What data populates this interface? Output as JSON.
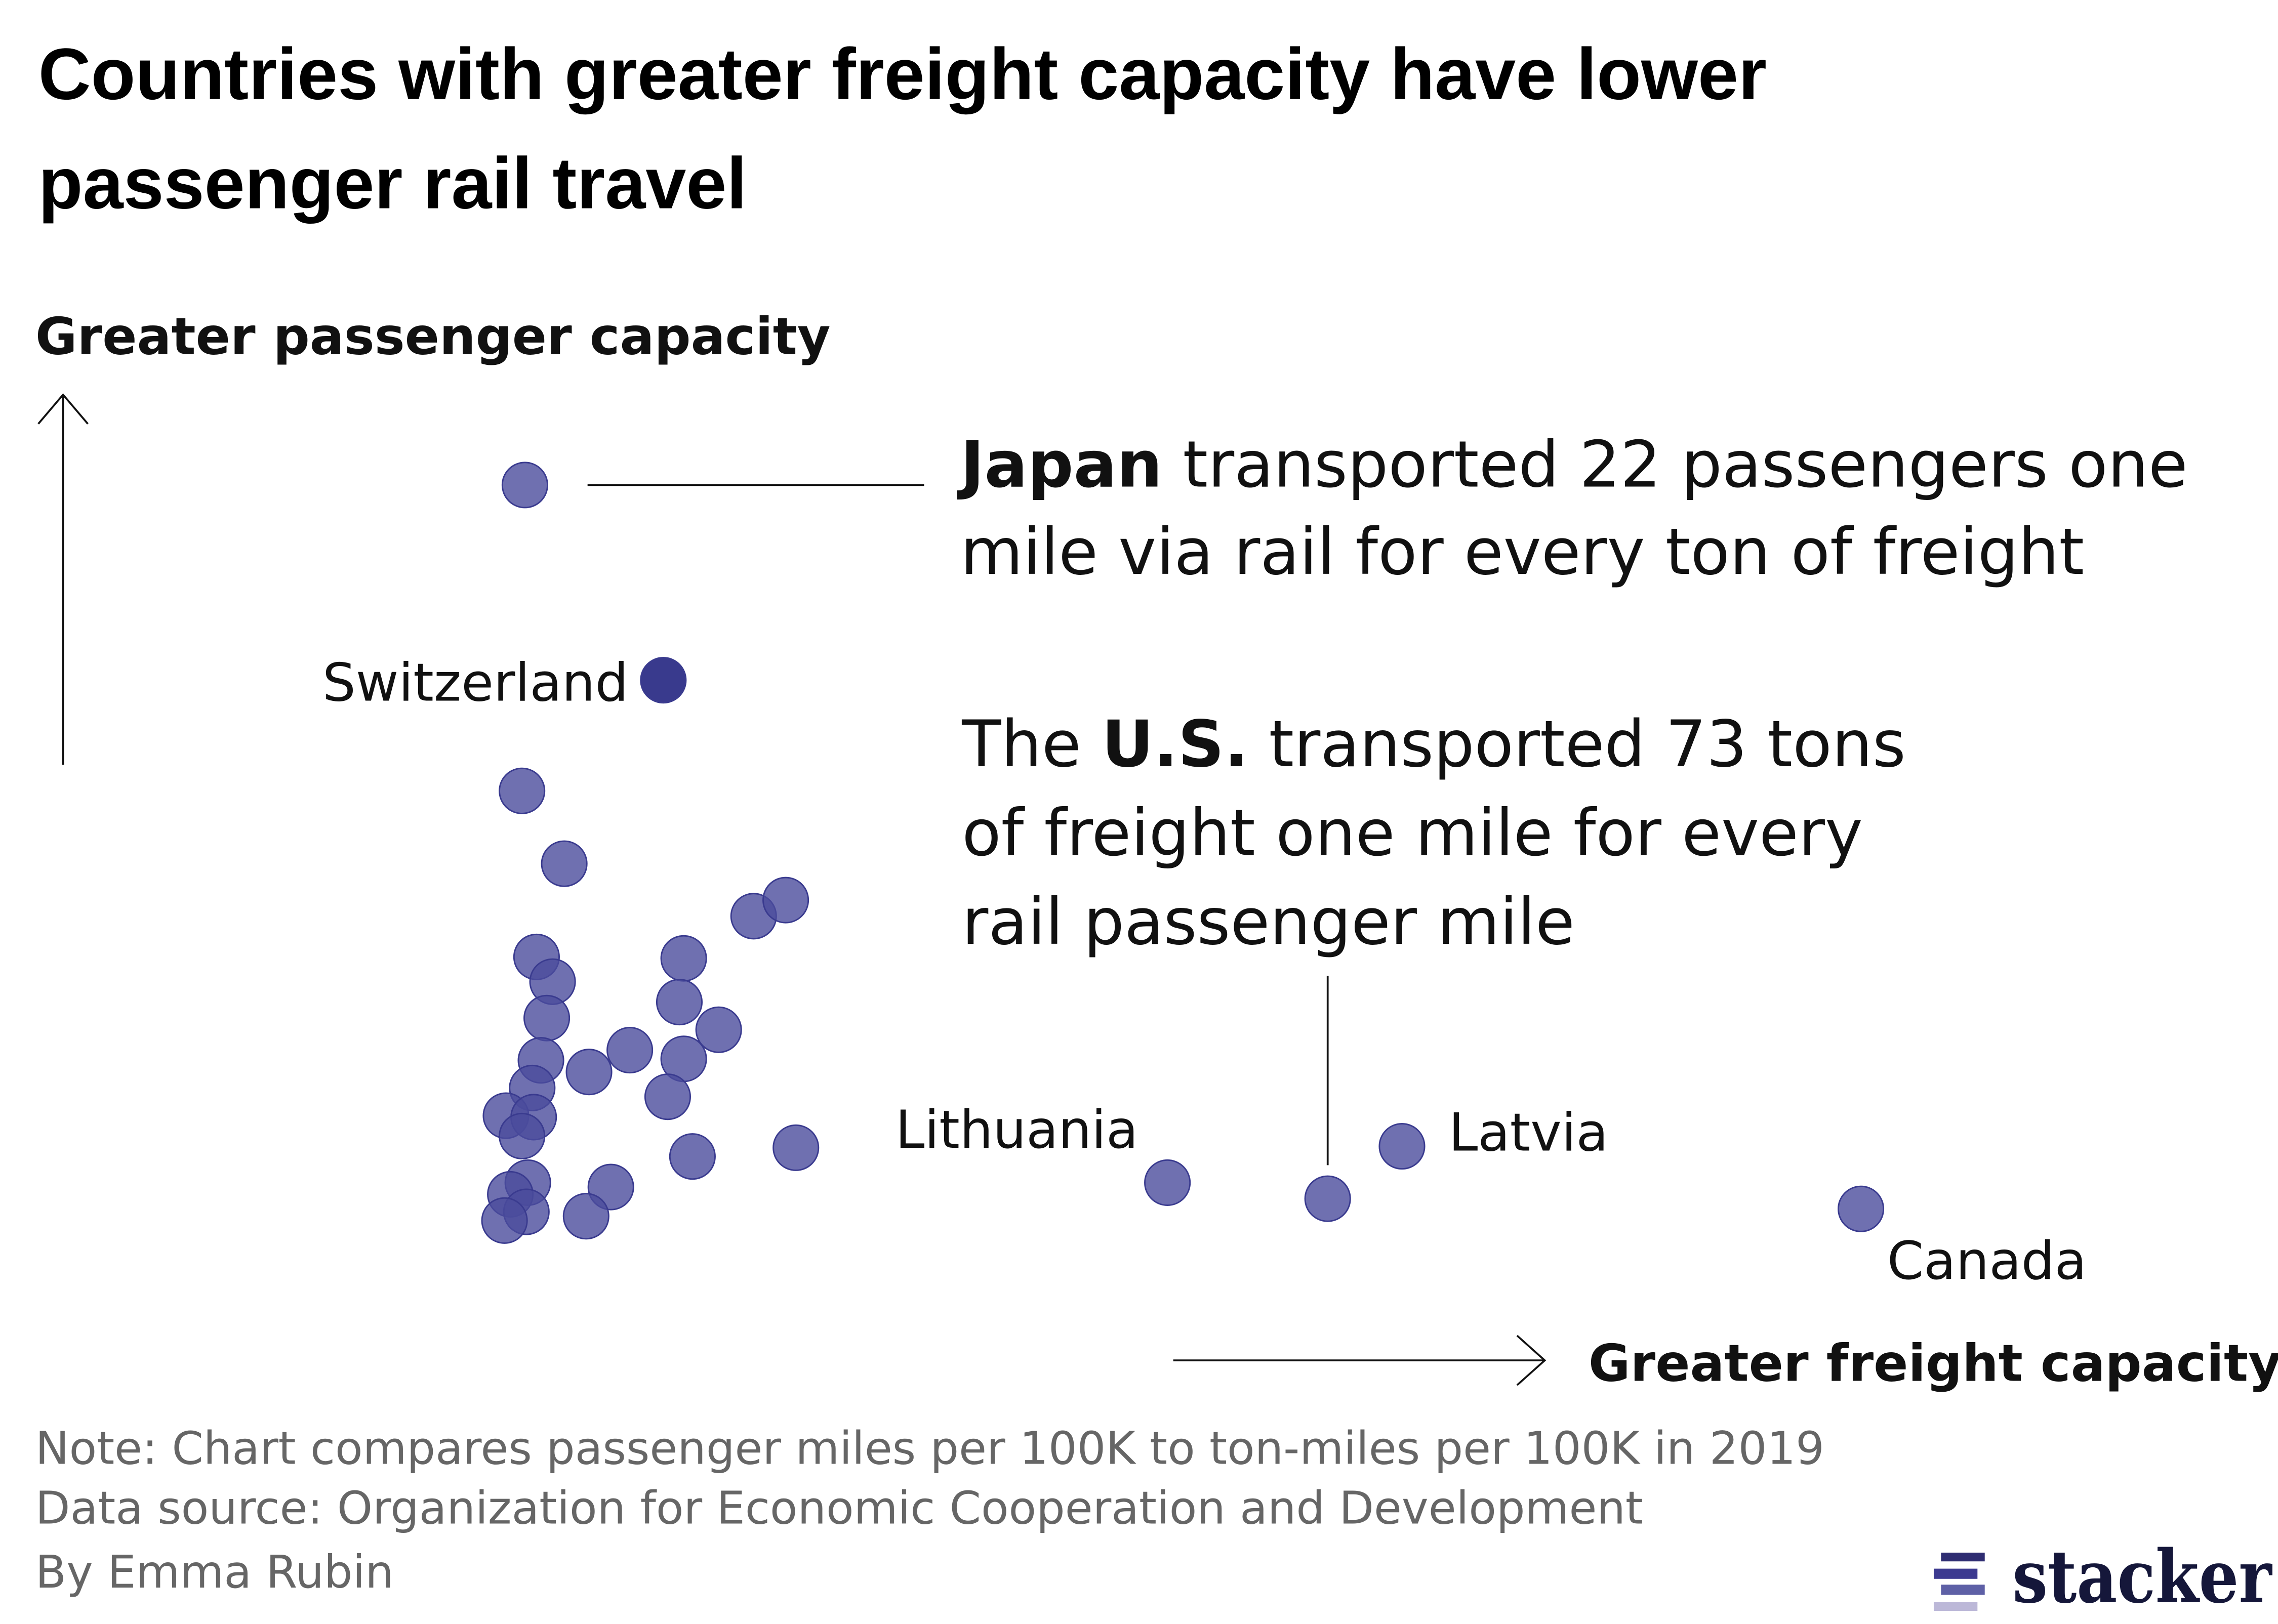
{
  "chart_data": {
    "type": "scatter",
    "title": "Countries with greater freight capacity have lower passenger rail travel",
    "title_lines": [
      "Countries with greater freight capacity have lower",
      "passenger rail travel"
    ],
    "ylabel": "Greater passenger capacity",
    "xlabel": "Greater freight capacity",
    "grid": false,
    "axis_ticks": false,
    "colors": {
      "point": "#4b4c9c",
      "highlight": "#2e2f87",
      "stroke": "#3a3b8f"
    },
    "points": [
      {
        "x": 2.0,
        "y": 51.7,
        "label": "Japan"
      },
      {
        "x": 11.5,
        "y": 38.3,
        "label": "Switzerland",
        "highlight": true
      },
      {
        "x": 1.8,
        "y": 30.7
      },
      {
        "x": 4.7,
        "y": 25.7
      },
      {
        "x": 17.7,
        "y": 22.1
      },
      {
        "x": 19.9,
        "y": 23.2
      },
      {
        "x": 2.8,
        "y": 19.3
      },
      {
        "x": 3.9,
        "y": 17.6
      },
      {
        "x": 3.5,
        "y": 15.1
      },
      {
        "x": 12.9,
        "y": 19.2
      },
      {
        "x": 12.6,
        "y": 16.2
      },
      {
        "x": 15.3,
        "y": 14.3
      },
      {
        "x": 3.1,
        "y": 12.2
      },
      {
        "x": 6.4,
        "y": 11.4
      },
      {
        "x": 9.2,
        "y": 12.9
      },
      {
        "x": 12.9,
        "y": 12.3
      },
      {
        "x": 2.5,
        "y": 10.3
      },
      {
        "x": 11.8,
        "y": 9.7
      },
      {
        "x": 0.7,
        "y": 8.4
      },
      {
        "x": 2.6,
        "y": 8.3
      },
      {
        "x": 1.8,
        "y": 7.0
      },
      {
        "x": 13.5,
        "y": 5.6
      },
      {
        "x": 20.6,
        "y": 6.2
      },
      {
        "x": 2.2,
        "y": 3.8
      },
      {
        "x": 1.0,
        "y": 3.0
      },
      {
        "x": 7.9,
        "y": 3.5
      },
      {
        "x": 2.1,
        "y": 1.8
      },
      {
        "x": 0.6,
        "y": 1.2
      },
      {
        "x": 6.2,
        "y": 1.5
      },
      {
        "x": 46.1,
        "y": 3.8,
        "label": "Lithuania"
      },
      {
        "x": 57.1,
        "y": 2.7
      },
      {
        "x": 62.2,
        "y": 6.3,
        "label": "Latvia"
      },
      {
        "x": 93.7,
        "y": 2.0,
        "label": "Canada"
      }
    ],
    "annotations": {
      "japan": {
        "bold": "Japan",
        "line1": " transported 22 passengers one",
        "line2": "mile via rail for every ton of freight"
      },
      "us": {
        "pre": "The ",
        "bold": "U.S.",
        "line1": " transported 73 tons",
        "line2": "of freight one mile for every",
        "line3": "rail passenger mile"
      }
    }
  },
  "footer": {
    "note": "Note: Chart compares passenger miles per 100K to ton-miles per 100K in 2019",
    "source": "Data source: Organization for Economic Cooperation and Development",
    "byline": "By Emma Rubin",
    "logo": "stacker"
  }
}
